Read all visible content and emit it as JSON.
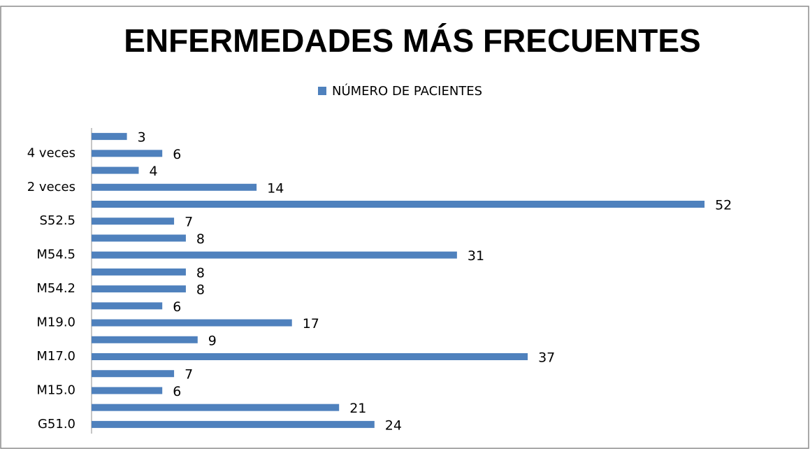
{
  "chart_data": {
    "type": "barh",
    "title": "ENFERMEDADES MÁS FRECUENTES",
    "categories": [
      "G51.0",
      null,
      "M15.0",
      null,
      "M17.0",
      null,
      "M19.0",
      null,
      "M54.2",
      null,
      "M54.5",
      null,
      "S52.5",
      null,
      "2 veces",
      null,
      "4 veces",
      null
    ],
    "series": [
      {
        "name": "NÚMERO DE PACIENTES",
        "color": "#4f81bd",
        "values": [
          24,
          21,
          6,
          7,
          37,
          9,
          17,
          6,
          8,
          8,
          31,
          8,
          7,
          52,
          14,
          4,
          6,
          3
        ]
      }
    ],
    "xlim": [
      0,
      60
    ],
    "legend": "top",
    "grid": false
  }
}
